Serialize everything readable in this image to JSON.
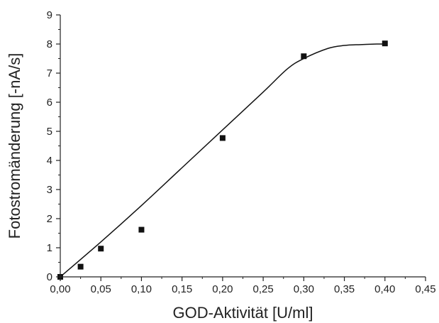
{
  "chart_data": {
    "type": "scatter",
    "xlabel": "GOD-Aktivität [U/ml]",
    "ylabel": "Fotostromänderung [-nA/s]",
    "xlim": [
      0,
      0.45
    ],
    "ylim": [
      0,
      9
    ],
    "x_ticks": [
      "0,00",
      "0,05",
      "0,10",
      "0,15",
      "0,20",
      "0,25",
      "0,30",
      "0,35",
      "0,40",
      "0,45"
    ],
    "y_ticks": [
      "0",
      "1",
      "2",
      "3",
      "4",
      "5",
      "6",
      "7",
      "8",
      "9"
    ],
    "grid": false,
    "series": [
      {
        "kind": "scatter",
        "marker": "square",
        "x": [
          0,
          0.025,
          0.05,
          0.1,
          0.2,
          0.3,
          0.4
        ],
        "y": [
          0.0,
          0.35,
          0.97,
          1.62,
          4.77,
          7.58,
          8.02
        ]
      },
      {
        "kind": "fit-line",
        "x": [
          0,
          0.05,
          0.1,
          0.15,
          0.2,
          0.25,
          0.28,
          0.3,
          0.33,
          0.35,
          0.37,
          0.39,
          0.4
        ],
        "y": [
          0,
          1.2,
          2.45,
          3.75,
          5.05,
          6.35,
          7.15,
          7.5,
          7.85,
          7.95,
          7.98,
          8.0,
          8.0
        ]
      }
    ],
    "colors": {
      "marker": "#111111",
      "line": "#111111",
      "axis": "#222222"
    }
  }
}
